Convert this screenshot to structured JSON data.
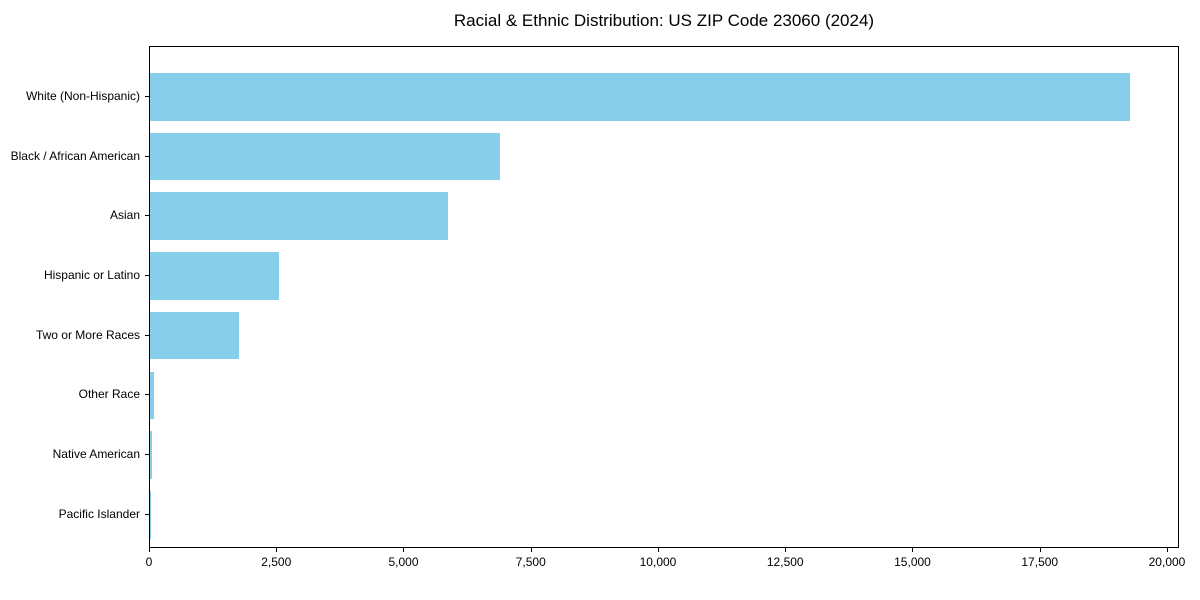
{
  "page": {
    "background": "#ffffff",
    "text_color": "#000000"
  },
  "chart_data": {
    "type": "bar",
    "orientation": "horizontal",
    "title": "Racial & Ethnic Distribution: US ZIP Code 23060 (2024)",
    "categories": [
      "White (Non-Hispanic)",
      "Black / African American",
      "Asian",
      "Hispanic or Latino",
      "Two or More Races",
      "Other Race",
      "Native American",
      "Pacific Islander"
    ],
    "values": [
      19250,
      6880,
      5850,
      2540,
      1740,
      70,
      40,
      10
    ],
    "xlabel": "",
    "ylabel": "",
    "xlim": [
      0,
      20236
    ],
    "xticks": [
      0,
      2500,
      5000,
      7500,
      10000,
      12500,
      15000,
      17500,
      20000
    ],
    "xtick_labels": [
      "0",
      "2,500",
      "5,000",
      "7,500",
      "10,000",
      "12,500",
      "15,000",
      "17,500",
      "20,000"
    ],
    "bar_color": "#87CEEB",
    "spine_color": "#000000",
    "grid": false,
    "legend": null
  }
}
